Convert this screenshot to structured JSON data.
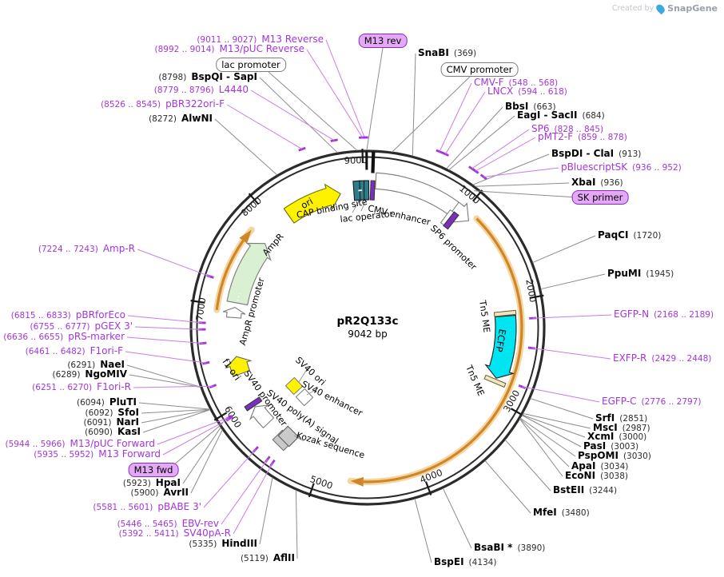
{
  "watermark": {
    "prefix": "Created by",
    "brand": "SnapGene"
  },
  "plasmid": {
    "name": "pR2Q133c",
    "size_label": "9042 bp",
    "length_bp": 9042
  },
  "tick_labels": [
    {
      "bp": 1000,
      "label": "1000"
    },
    {
      "bp": 2000,
      "label": "2000"
    },
    {
      "bp": 3000,
      "label": "3000"
    },
    {
      "bp": 4000,
      "label": "4000"
    },
    {
      "bp": 5000,
      "label": "5000"
    },
    {
      "bp": 6000,
      "label": "6000"
    },
    {
      "bp": 7000,
      "label": "7000"
    },
    {
      "bp": 8000,
      "label": "8000"
    },
    {
      "bp": 9000,
      "label": "9000"
    }
  ],
  "site_callouts": [
    {
      "id": "m13-reverse",
      "kind": "primer",
      "side": "L",
      "pos": "(9011 .. 9027)",
      "name": "M13 Reverse",
      "bp": 9019
    },
    {
      "id": "m13-puc-reverse",
      "kind": "primer",
      "side": "L",
      "pos": "(8992 .. 9014)",
      "name": "M13/pUC Reverse",
      "bp": 9003
    },
    {
      "id": "bspqi-sapi",
      "kind": "enzyme",
      "side": "L",
      "pos": "(8798)",
      "name": "BspQI - SapI",
      "bp": 8798
    },
    {
      "id": "l4440",
      "kind": "primer",
      "side": "L",
      "pos": "(8779 .. 8796)",
      "name": "L4440",
      "bp": 8788
    },
    {
      "id": "pbr322ori-f",
      "kind": "primer",
      "side": "L",
      "pos": "(8526 .. 8545)",
      "name": "pBR322ori-F",
      "bp": 8536
    },
    {
      "id": "alwni",
      "kind": "enzyme",
      "side": "L",
      "pos": "(8272)",
      "name": "AlwNI",
      "bp": 8272
    },
    {
      "id": "amp-r",
      "kind": "primer",
      "side": "L",
      "pos": "(7224 .. 7243)",
      "name": "Amp-R",
      "bp": 7234
    },
    {
      "id": "pbrforeco",
      "kind": "primer",
      "side": "L",
      "pos": "(6815 .. 6833)",
      "name": "pBRforEco",
      "bp": 6824
    },
    {
      "id": "pgex-3",
      "kind": "primer",
      "side": "L",
      "pos": "(6755 .. 6777)",
      "name": "pGEX 3'",
      "bp": 6766
    },
    {
      "id": "prs-marker",
      "kind": "primer",
      "side": "L",
      "pos": "(6636 .. 6655)",
      "name": "pRS-marker",
      "bp": 6646
    },
    {
      "id": "f1ori-f",
      "kind": "primer",
      "side": "L",
      "pos": "(6461 .. 6482)",
      "name": "F1ori-F",
      "bp": 6472
    },
    {
      "id": "naei",
      "kind": "enzyme",
      "side": "L",
      "pos": "(6291)",
      "name": "NaeI",
      "bp": 6291
    },
    {
      "id": "ngomiv",
      "kind": "enzyme",
      "side": "L",
      "pos": "(6289)",
      "name": "NgoMIV",
      "bp": 6289
    },
    {
      "id": "f1ori-r",
      "kind": "primer",
      "side": "L",
      "pos": "(6251 .. 6270)",
      "name": "F1ori-R",
      "bp": 6261
    },
    {
      "id": "pluti",
      "kind": "enzyme",
      "side": "L",
      "pos": "(6094)",
      "name": "PluTI",
      "bp": 6094
    },
    {
      "id": "sfoi",
      "kind": "enzyme",
      "side": "L",
      "pos": "(6092)",
      "name": "SfoI",
      "bp": 6092
    },
    {
      "id": "nari",
      "kind": "enzyme",
      "side": "L",
      "pos": "(6091)",
      "name": "NarI",
      "bp": 6091
    },
    {
      "id": "kasi",
      "kind": "enzyme",
      "side": "L",
      "pos": "(6090)",
      "name": "KasI",
      "bp": 6090
    },
    {
      "id": "m13-puc-forward",
      "kind": "primer",
      "side": "L",
      "pos": "(5944 .. 5966)",
      "name": "M13/pUC Forward",
      "bp": 5955
    },
    {
      "id": "m13-forward",
      "kind": "primer",
      "side": "L",
      "pos": "(5935 .. 5952)",
      "name": "M13 Forward",
      "bp": 5944
    },
    {
      "id": "hpai",
      "kind": "enzyme",
      "side": "L",
      "pos": "(5923)",
      "name": "HpaI",
      "bp": 5923
    },
    {
      "id": "avrii",
      "kind": "enzyme",
      "side": "L",
      "pos": "(5900)",
      "name": "AvrII",
      "bp": 5900
    },
    {
      "id": "pbabe-3",
      "kind": "primer",
      "side": "L",
      "pos": "(5581 .. 5601)",
      "name": "pBABE 3'",
      "bp": 5591
    },
    {
      "id": "ebv-rev",
      "kind": "primer",
      "side": "L",
      "pos": "(5446 .. 5465)",
      "name": "EBV-rev",
      "bp": 5456
    },
    {
      "id": "sv40pa-r",
      "kind": "primer",
      "side": "L",
      "pos": "(5392 .. 5411)",
      "name": "SV40pA-R",
      "bp": 5402
    },
    {
      "id": "hindiii",
      "kind": "enzyme",
      "side": "L",
      "pos": "(5335)",
      "name": "HindIII",
      "bp": 5335
    },
    {
      "id": "aflii",
      "kind": "enzyme",
      "side": "L",
      "pos": "(5119)",
      "name": "AflII",
      "bp": 5119
    },
    {
      "id": "snabi",
      "kind": "enzyme",
      "side": "R",
      "pos": "(369)",
      "name": "SnaBI",
      "bp": 369
    },
    {
      "id": "cmv-f",
      "kind": "primer",
      "side": "R",
      "pos": "(548 .. 568)",
      "name": "CMV-F",
      "bp": 558
    },
    {
      "id": "lncx",
      "kind": "primer",
      "side": "R",
      "pos": "(594 .. 618)",
      "name": "LNCX",
      "bp": 606
    },
    {
      "id": "bbsi",
      "kind": "enzyme",
      "side": "R",
      "pos": "(663)",
      "name": "BbsI",
      "bp": 663
    },
    {
      "id": "eagi-sacii",
      "kind": "enzyme",
      "side": "R",
      "pos": "(684)",
      "name": "EagI - SacII",
      "bp": 684
    },
    {
      "id": "sp6",
      "kind": "primer",
      "side": "R",
      "pos": "(828 .. 845)",
      "name": "SP6",
      "bp": 836
    },
    {
      "id": "pmt2-f",
      "kind": "primer",
      "side": "R",
      "pos": "(859 .. 878)",
      "name": "pMT2-F",
      "bp": 868
    },
    {
      "id": "bspdi-clai",
      "kind": "enzyme",
      "side": "R",
      "pos": "(913)",
      "name": "BspDI - ClaI",
      "bp": 913
    },
    {
      "id": "pbluescriptsk",
      "kind": "primer",
      "side": "R",
      "pos": "(936 .. 952)",
      "name": "pBluescriptSK",
      "bp": 944
    },
    {
      "id": "xbai",
      "kind": "enzyme",
      "side": "R",
      "pos": "(936)",
      "name": "XbaI",
      "bp": 936
    },
    {
      "id": "paqci",
      "kind": "enzyme",
      "side": "R",
      "pos": "(1720)",
      "name": "PaqCI",
      "bp": 1720
    },
    {
      "id": "ppumi",
      "kind": "enzyme",
      "side": "R",
      "pos": "(1945)",
      "name": "PpuMI",
      "bp": 1945
    },
    {
      "id": "egfp-n",
      "kind": "primer",
      "side": "R",
      "pos": "(2168 .. 2189)",
      "name": "EGFP-N",
      "bp": 2178
    },
    {
      "id": "exfp-r",
      "kind": "primer",
      "side": "R",
      "pos": "(2429 .. 2448)",
      "name": "EXFP-R",
      "bp": 2438
    },
    {
      "id": "egfp-c",
      "kind": "primer",
      "side": "R",
      "pos": "(2776 .. 2797)",
      "name": "EGFP-C",
      "bp": 2786
    },
    {
      "id": "srfi",
      "kind": "enzyme",
      "side": "R",
      "pos": "(2851)",
      "name": "SrfI",
      "bp": 2851
    },
    {
      "id": "msci",
      "kind": "enzyme",
      "side": "R",
      "pos": "(2987)",
      "name": "MscI",
      "bp": 2987
    },
    {
      "id": "xcmi",
      "kind": "enzyme",
      "side": "R",
      "pos": "(3000)",
      "name": "XcmI",
      "bp": 3000
    },
    {
      "id": "pasi",
      "kind": "enzyme",
      "side": "R",
      "pos": "(3003)",
      "name": "PasI",
      "bp": 3003
    },
    {
      "id": "pspomi",
      "kind": "enzyme",
      "side": "R",
      "pos": "(3030)",
      "name": "PspOMI",
      "bp": 3030
    },
    {
      "id": "apai",
      "kind": "enzyme",
      "side": "R",
      "pos": "(3034)",
      "name": "ApaI",
      "bp": 3034
    },
    {
      "id": "econi",
      "kind": "enzyme",
      "side": "R",
      "pos": "(3038)",
      "name": "EcoNI",
      "bp": 3038
    },
    {
      "id": "bsteii",
      "kind": "enzyme",
      "side": "R",
      "pos": "(3244)",
      "name": "BstEII",
      "bp": 3244
    },
    {
      "id": "mfei",
      "kind": "enzyme",
      "side": "R",
      "pos": "(3480)",
      "name": "MfeI",
      "bp": 3480
    },
    {
      "id": "bsabi",
      "kind": "enzyme",
      "side": "R",
      "pos": "(3890)",
      "name": "BsaBI *",
      "bp": 3890
    },
    {
      "id": "bspei",
      "kind": "enzyme",
      "side": "R",
      "pos": "(4134)",
      "name": "BspEI",
      "bp": 4134
    }
  ],
  "boxed_callouts": [
    {
      "id": "m13-rev-box",
      "kind": "primer-box",
      "label": "M13 rev",
      "bp": 9035
    },
    {
      "id": "lac-promoter-box",
      "kind": "feature-box",
      "label": "lac promoter",
      "bp": 8958
    },
    {
      "id": "cmv-promoter-box",
      "kind": "feature-box",
      "label": "CMV promoter",
      "bp": 200
    },
    {
      "id": "sk-primer-box",
      "kind": "primer-box",
      "label": "SK primer",
      "bp": 952
    },
    {
      "id": "m13-fwd-box",
      "kind": "primer-box",
      "label": "M13 fwd",
      "bp": 5943
    }
  ],
  "features": [
    {
      "id": "ori",
      "label": "ori",
      "color": "#FFF200"
    },
    {
      "id": "cap-binding-site",
      "label": "CAP binding site",
      "color": "#2D7D8C"
    },
    {
      "id": "lac-operator",
      "label": "lac operator",
      "color": "#2D7D8C"
    },
    {
      "id": "cmv-enhancer",
      "label": "CMV enhancer",
      "color": "#FFFFFF"
    },
    {
      "id": "sp6-promoter",
      "label": "SP6 promoter",
      "color": "#7B2FBE"
    },
    {
      "id": "tn5-me-1",
      "label": "Tn5 ME",
      "color": "#EFE6C6"
    },
    {
      "id": "ecfp",
      "label": "ECFP",
      "color": "#00E5F0"
    },
    {
      "id": "tn5-me-2",
      "label": "Tn5 ME",
      "color": "#EFE6C6"
    },
    {
      "id": "ampr",
      "label": "AmpR",
      "color": "#D9F0D3"
    },
    {
      "id": "ampr-promoter",
      "label": "AmpR promoter",
      "color": "#FFFFFF"
    },
    {
      "id": "f1-ori",
      "label": "f1 ori",
      "color": "#FFF200"
    },
    {
      "id": "sv40-promoter",
      "label": "SV40 promoter",
      "color": "#FFFFFF"
    },
    {
      "id": "sv40-ori",
      "label": "SV40 ori",
      "color": "#FFF200"
    },
    {
      "id": "sv40-enhancer",
      "label": "SV40 enhancer",
      "color": "#FFFFFF"
    },
    {
      "id": "sv40-polya",
      "label": "SV40 poly(A) signal",
      "color": "#C9C9C9"
    },
    {
      "id": "kozak",
      "label": "Kozak sequence",
      "color": "#C9C9C9"
    }
  ],
  "colors": {
    "primer_text": "#A335DB",
    "primer_line": "#C77CEB",
    "enzyme_text": "#000000",
    "position_text": "#2b2b2b",
    "callout_line": "#8C8C8C",
    "ring": "#2b2b2b",
    "selection_arc": "#CE8628",
    "purple_feature": "#7B2FBE",
    "teal_feature": "#2D7D8C"
  }
}
